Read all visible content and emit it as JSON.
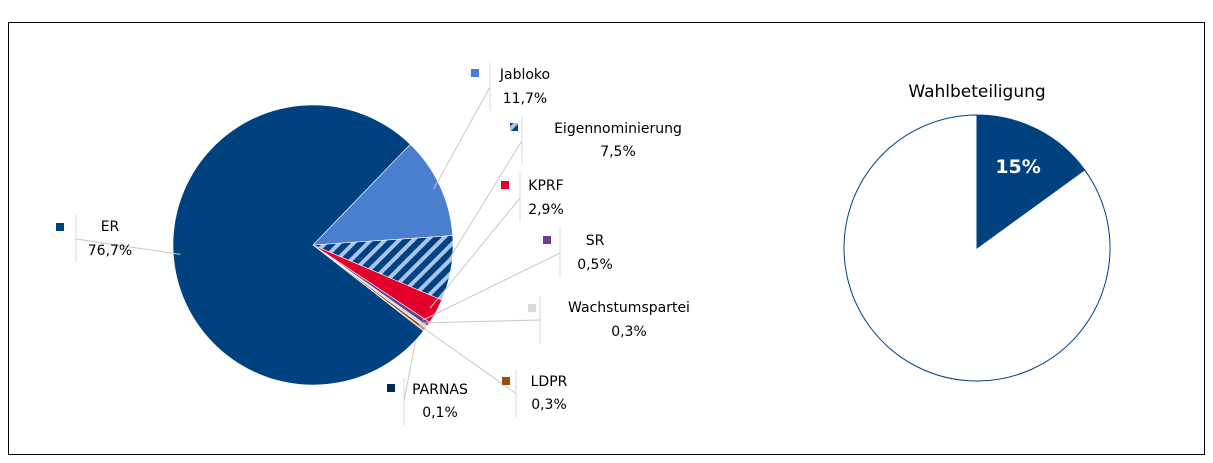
{
  "chart_data": [
    {
      "type": "pie",
      "categories": [
        "Jabloko",
        "Eigennominierung",
        "KPRF",
        "SR",
        "Wachstumspartei",
        "LDPR",
        "PARNAS",
        "ER"
      ],
      "values": [
        11.7,
        7.5,
        2.9,
        0.5,
        0.3,
        0.3,
        0.1,
        76.7
      ],
      "value_labels": [
        "11,7%",
        "7,5%",
        "2,9%",
        "0,5%",
        "0,3%",
        "0,3%",
        "0,1%",
        "76,7%"
      ],
      "colors": [
        "#4a7fd0",
        "#00427f",
        "#e3002b",
        "#6a3d8f",
        "#d9d9d9",
        "#9c4a10",
        "#002a5c",
        "#00427f"
      ],
      "hatch": [
        false,
        true,
        false,
        false,
        false,
        false,
        false,
        false
      ]
    },
    {
      "type": "pie",
      "title": "Wahlbeteiligung",
      "values": [
        15,
        85
      ],
      "value_labels": [
        "15%",
        null
      ],
      "colors": [
        "#00427f",
        "#ffffff"
      ],
      "edge_color": "#00427f"
    }
  ]
}
